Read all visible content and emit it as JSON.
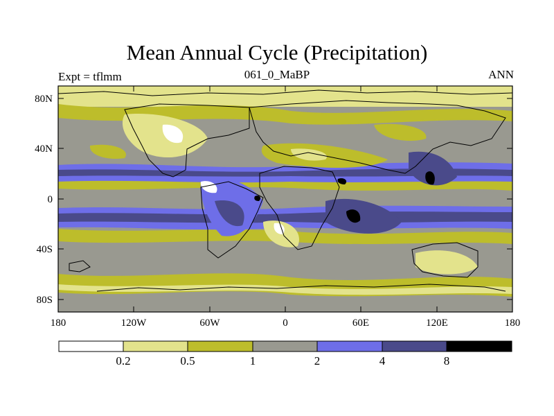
{
  "title": "Mean Annual Cycle (Precipitation)",
  "experiment_label": "Expt = tflmm",
  "center_label": "061_0_MaBP",
  "season_label": "ANN",
  "lat_ticks": [
    "80N",
    "40N",
    "0",
    "40S",
    "80S"
  ],
  "lon_ticks": [
    "180",
    "120W",
    "60W",
    "0",
    "60E",
    "120E",
    "180"
  ],
  "colorbar": {
    "levels": [
      "0.2",
      "0.5",
      "1",
      "2",
      "4",
      "8"
    ],
    "colors": [
      "#ffffff",
      "#e3e38c",
      "#bdbd2b",
      "#999990",
      "#6e6ee8",
      "#4a4a8a",
      "#000000"
    ]
  },
  "colors": {
    "frame": "#000000",
    "coast": "#000000"
  }
}
